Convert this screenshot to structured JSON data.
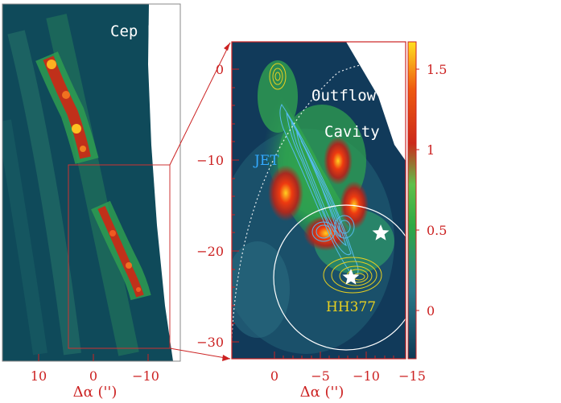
{
  "left_panel": {
    "title": "Cep E",
    "x_ticks": [
      "10",
      "0",
      "−10"
    ],
    "x_label": "Δα ('')"
  },
  "right_panel": {
    "y_ticks": [
      "0",
      "−10",
      "−20",
      "−30"
    ],
    "x_ticks": [
      "0",
      "−5",
      "−10",
      "−15"
    ],
    "x_label": "Δα ('')",
    "labels": {
      "outflow": "Outflow",
      "cavity": "Cavity",
      "jet": "JET",
      "hh": "HH377"
    }
  },
  "colorbar": {
    "ticks": [
      "1.5",
      "1",
      "0.5",
      "0"
    ]
  },
  "colors": {
    "axis": "#cc2222",
    "background_map": "#0f4a5a",
    "jet_contours": "#55bbee",
    "hh_contours": "#e8d020"
  }
}
